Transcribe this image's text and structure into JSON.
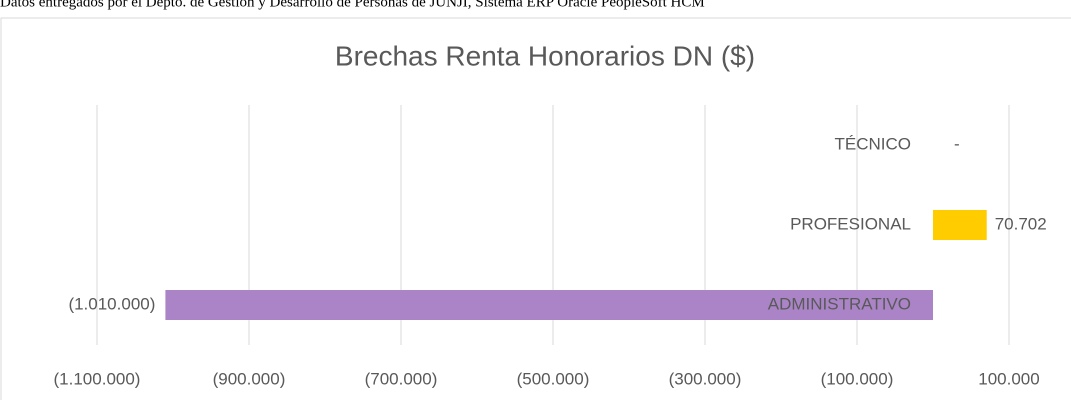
{
  "caption": "Datos entregados por el Depto. de Gestión y Desarrollo de Personas de JUNJI, Sistema ERP Oracle PeopleSoft HCM",
  "chart_data": {
    "type": "hbar",
    "title": "Brechas Renta Honorarios DN ($)",
    "categories": [
      "ADMINISTRATIVO",
      "PROFESIONAL",
      "TÉCNICO"
    ],
    "values": [
      -1010000,
      70702,
      0
    ],
    "value_labels": [
      "(1.010.000)",
      "70.702",
      "-"
    ],
    "colors": [
      "#ab84c8",
      "#ffcc00",
      "#ffcc00"
    ],
    "xlim": [
      -1200000,
      200000
    ],
    "xticks": [
      {
        "value": -1100000,
        "label": "(1.100.000)"
      },
      {
        "value": -900000,
        "label": "(900.000)"
      },
      {
        "value": -700000,
        "label": "(700.000)"
      },
      {
        "value": -500000,
        "label": "(500.000)"
      },
      {
        "value": -300000,
        "label": "(300.000)"
      },
      {
        "value": -100000,
        "label": "(100.000)"
      },
      {
        "value": 100000,
        "label": "100.000"
      }
    ],
    "grid": true
  }
}
